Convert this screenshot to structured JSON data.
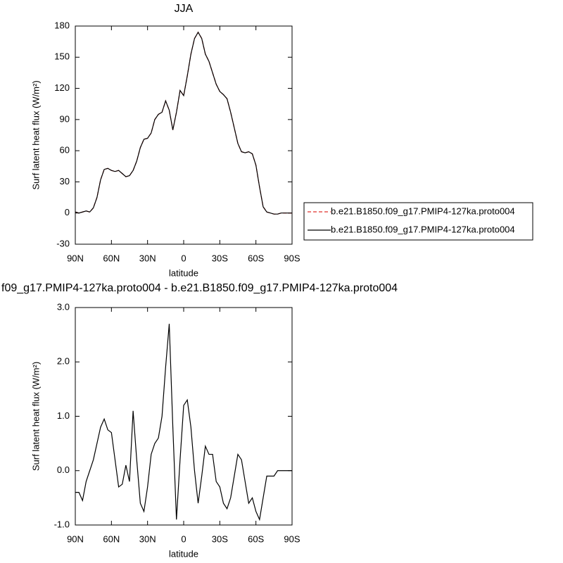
{
  "chart_data": [
    {
      "type": "line",
      "title": "JJA",
      "x_label": "latitude",
      "y_label": "Surf latent heat flux (W/m²)",
      "x": [
        90,
        87,
        84,
        81,
        78,
        75,
        72,
        69,
        66,
        63,
        60,
        57,
        54,
        51,
        48,
        45,
        42,
        39,
        36,
        33,
        30,
        27,
        24,
        21,
        18,
        15,
        12,
        9,
        6,
        3,
        0,
        -3,
        -6,
        -9,
        -12,
        -15,
        -18,
        -21,
        -24,
        -27,
        -30,
        -33,
        -36,
        -39,
        -42,
        -45,
        -48,
        -51,
        -54,
        -57,
        -60,
        -63,
        -66,
        -69,
        -72,
        -75,
        -78,
        -81,
        -84,
        -87,
        -90
      ],
      "series": [
        {
          "name": "b.e21.B1850.f09_g17.PMIP4-127ka.proto004",
          "color": "#e0302c",
          "dashed": true,
          "values": [
            1,
            0,
            1,
            2,
            1,
            5,
            15,
            32,
            42,
            43,
            41,
            40,
            41,
            38,
            35,
            36,
            41,
            50,
            63,
            71,
            72,
            77,
            90,
            95,
            97,
            108,
            99,
            80,
            97,
            118,
            113,
            132,
            153,
            168,
            174,
            168,
            153,
            146,
            135,
            124,
            117,
            114,
            110,
            97,
            82,
            67,
            59,
            58,
            59,
            57,
            46,
            25,
            6,
            1,
            0,
            -1,
            -1,
            0,
            0,
            0,
            0
          ]
        },
        {
          "name": "b.e21.B1850.f09_g17.PMIP4-127ka.proto004",
          "color": "#000000",
          "dashed": false,
          "values": [
            1,
            0,
            1,
            2,
            1,
            5,
            15,
            32,
            42,
            43,
            41,
            40,
            41,
            38,
            35,
            36,
            41,
            50,
            63,
            71,
            72,
            77,
            90,
            95,
            97,
            108,
            99,
            80,
            97,
            118,
            113,
            132,
            153,
            168,
            174,
            168,
            153,
            146,
            135,
            124,
            117,
            114,
            110,
            97,
            82,
            67,
            59,
            58,
            59,
            57,
            46,
            25,
            6,
            1,
            0,
            -1,
            -1,
            0,
            0,
            0,
            0
          ]
        }
      ],
      "xlim": [
        90,
        -90
      ],
      "xticks": [
        {
          "value": 90,
          "label": "90N"
        },
        {
          "value": 60,
          "label": "60N"
        },
        {
          "value": 30,
          "label": "30N"
        },
        0,
        {
          "value": -30,
          "label": "30S"
        },
        {
          "value": -60,
          "label": "60S"
        },
        {
          "value": -90,
          "label": "90S"
        }
      ],
      "ylim": [
        -30,
        180
      ],
      "yticks": [
        -30,
        0,
        30,
        60,
        90,
        120,
        150,
        180
      ],
      "legend": "right"
    },
    {
      "type": "line",
      "title": "f09_g17.PMIP4-127ka.proto004 - b.e21.B1850.f09_g17.PMIP4-127ka.proto004",
      "x_label": "latitude",
      "y_label": "Surf latent heat flux (W/m²)",
      "x": [
        90,
        87,
        84,
        81,
        78,
        75,
        72,
        69,
        66,
        63,
        60,
        57,
        54,
        51,
        48,
        45,
        42,
        39,
        36,
        33,
        30,
        27,
        24,
        21,
        18,
        15,
        12,
        9,
        6,
        3,
        0,
        -3,
        -6,
        -9,
        -12,
        -15,
        -18,
        -21,
        -24,
        -27,
        -30,
        -33,
        -36,
        -39,
        -42,
        -45,
        -48,
        -51,
        -54,
        -57,
        -60,
        -63,
        -66,
        -69,
        -72,
        -75,
        -78,
        -81,
        -84,
        -87,
        -90
      ],
      "series": [
        {
          "color": "#000000",
          "dashed": false,
          "values": [
            -0.4,
            -0.4,
            -0.55,
            -0.2,
            0.0,
            0.2,
            0.5,
            0.8,
            0.95,
            0.75,
            0.7,
            0.2,
            -0.3,
            -0.25,
            0.1,
            -0.2,
            1.1,
            0.2,
            -0.6,
            -0.75,
            -0.3,
            0.3,
            0.5,
            0.6,
            1.0,
            1.9,
            2.7,
            0.8,
            -0.9,
            0.2,
            1.2,
            1.3,
            0.8,
            0.0,
            -0.6,
            -0.1,
            0.45,
            0.3,
            0.3,
            -0.2,
            -0.3,
            -0.6,
            -0.7,
            -0.5,
            -0.1,
            0.3,
            0.2,
            -0.2,
            -0.6,
            -0.5,
            -0.75,
            -0.9,
            -0.5,
            -0.1,
            -0.1,
            -0.1,
            0.0,
            0.0,
            0.0,
            0.0,
            0.0
          ]
        }
      ],
      "xlim": [
        90,
        -90
      ],
      "xticks": [
        {
          "value": 90,
          "label": "90N"
        },
        {
          "value": 60,
          "label": "60N"
        },
        {
          "value": 30,
          "label": "30N"
        },
        0,
        {
          "value": -30,
          "label": "30S"
        },
        {
          "value": -60,
          "label": "60S"
        },
        {
          "value": -90,
          "label": "90S"
        }
      ],
      "ylim": [
        -1,
        3
      ],
      "yticks": [
        {
          "value": -1,
          "label": "-1.0"
        },
        {
          "value": 0,
          "label": "0.0"
        },
        {
          "value": 1,
          "label": "1.0"
        },
        {
          "value": 2,
          "label": "2.0"
        },
        {
          "value": 3,
          "label": "3.0"
        }
      ]
    }
  ]
}
